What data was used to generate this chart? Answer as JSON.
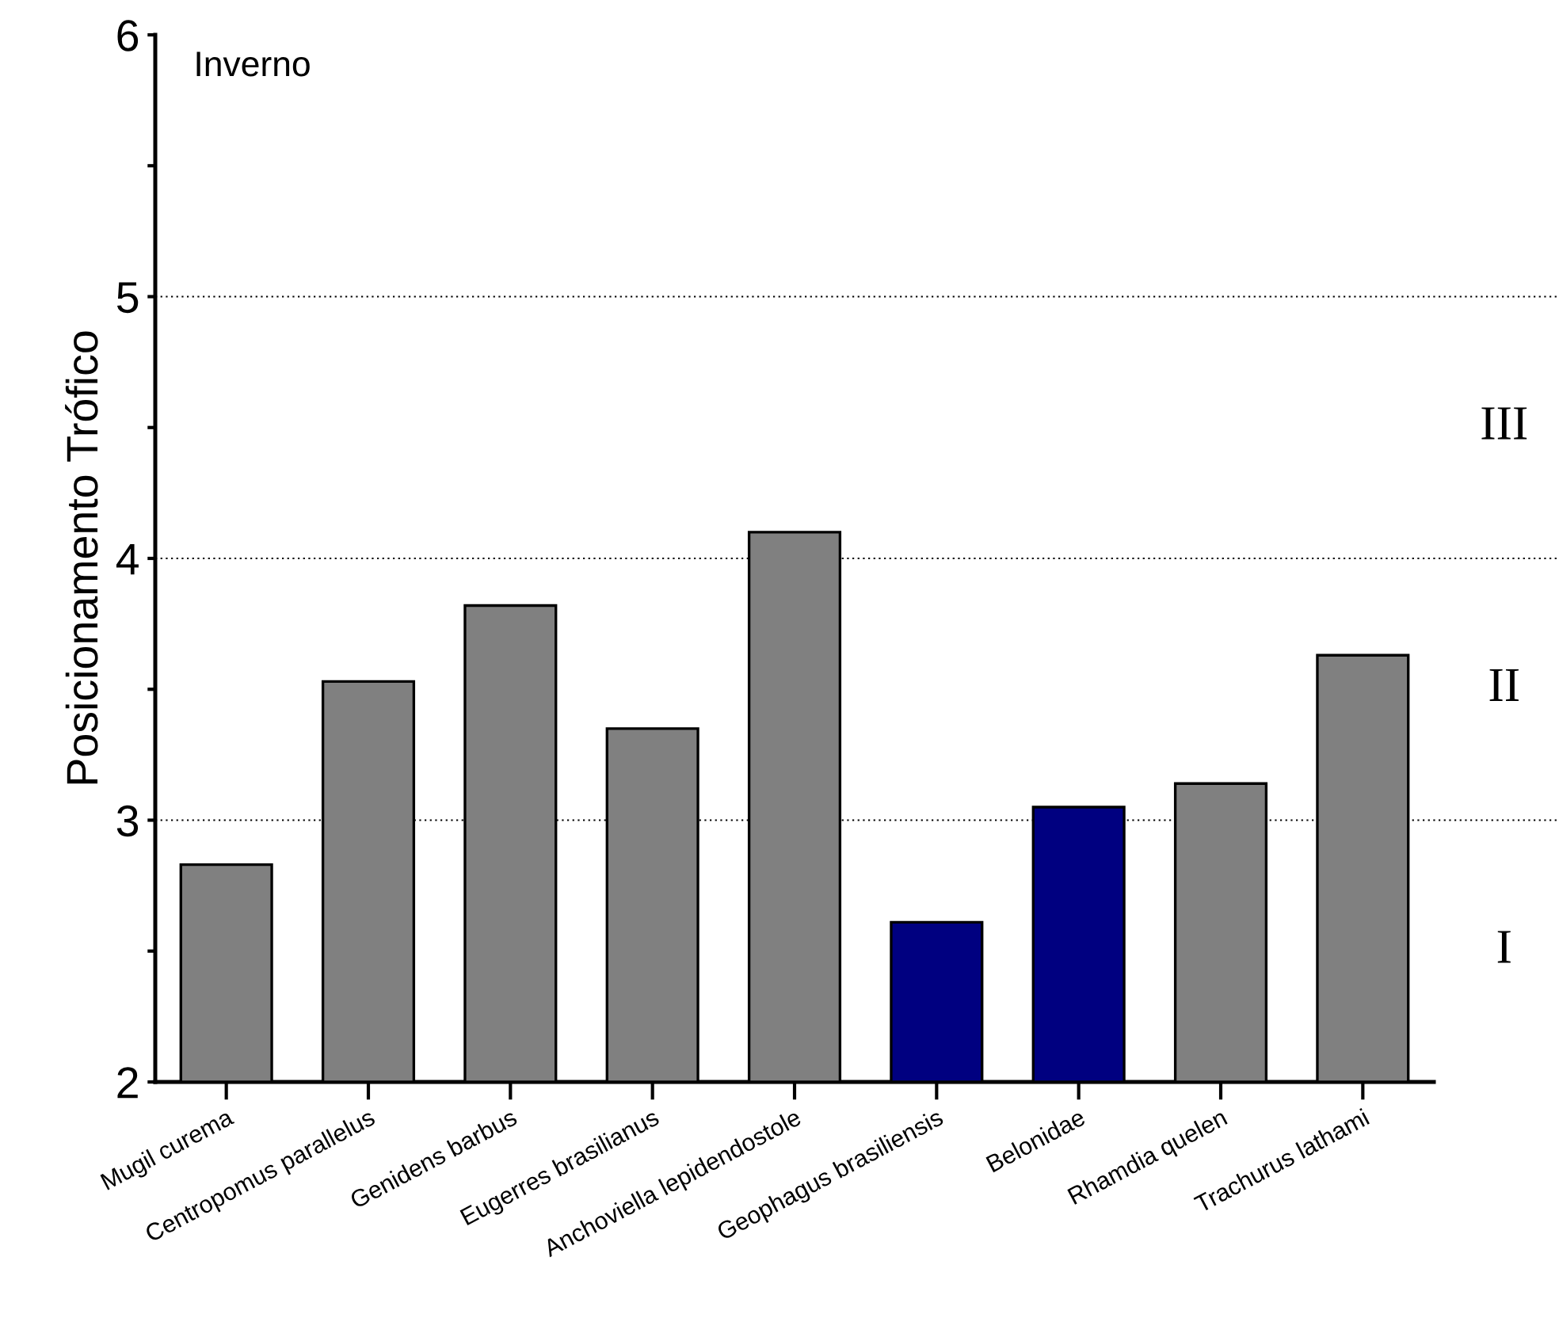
{
  "chart_data": {
    "type": "bar",
    "ylabel": "Posicionamento Trófico",
    "annotations": [
      "Inverno",
      "I",
      "II",
      "III"
    ],
    "categories": [
      "Mugil curema",
      "Centropomus parallelus",
      "Genidens barbus",
      "Eugerres brasilianus",
      "Anchoviella lepidendostole",
      "Geophagus brasiliensis",
      "Belonidae",
      "Rhamdia quelen",
      "Trachurus lathami"
    ],
    "values": [
      2.83,
      3.53,
      3.82,
      3.35,
      4.1,
      2.61,
      3.05,
      3.14,
      3.63
    ],
    "colors": [
      "#808080",
      "#808080",
      "#808080",
      "#808080",
      "#808080",
      "#000080",
      "#000080",
      "#808080",
      "#808080"
    ],
    "ylim": [
      2,
      6
    ],
    "yticks": [
      2,
      {
        "value": 2.5,
        "label": null
      },
      3,
      {
        "value": 3.5,
        "label": null
      },
      4,
      {
        "value": 4.5,
        "label": null
      },
      5,
      {
        "value": 5.5,
        "label": null
      },
      6
    ],
    "ref_lines": [
      {
        "axis": "y",
        "value": 3,
        "color": "#000000",
        "line_style": "dotted"
      },
      {
        "axis": "y",
        "value": 4,
        "color": "#000000",
        "line_style": "dotted"
      },
      {
        "axis": "y",
        "value": 5,
        "color": "#000000",
        "line_style": "dotted"
      }
    ],
    "grid": false,
    "legend": false
  }
}
